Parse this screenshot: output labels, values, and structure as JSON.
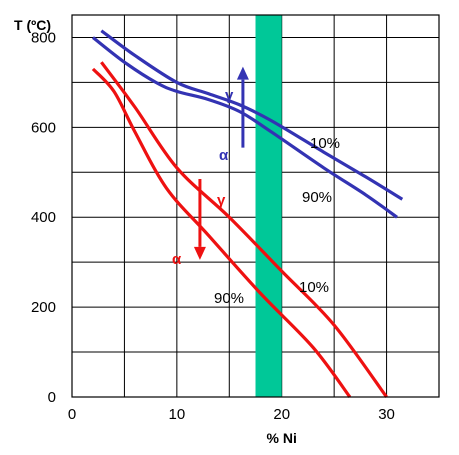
{
  "chart_data": {
    "type": "line",
    "ylabel": "T (ºC)",
    "xlabel": "% Ni",
    "xlim": [
      0,
      35
    ],
    "ylim": [
      0,
      850
    ],
    "xticks": [
      0,
      10,
      20,
      30
    ],
    "yticks": [
      0,
      200,
      400,
      600,
      800
    ],
    "grid": true,
    "series": [
      {
        "name": "10%",
        "color": "#3333b3",
        "points": [
          [
            2.8,
            815
          ],
          [
            6,
            760
          ],
          [
            10,
            700
          ],
          [
            13,
            675
          ],
          [
            16,
            650
          ],
          [
            19,
            615
          ],
          [
            24,
            545
          ],
          [
            28,
            490
          ],
          [
            31.5,
            440
          ]
        ]
      },
      {
        "name": "90%",
        "color": "#3333b3",
        "points": [
          [
            2,
            800
          ],
          [
            5,
            745
          ],
          [
            8,
            700
          ],
          [
            10,
            680
          ],
          [
            13,
            662
          ],
          [
            16,
            635
          ],
          [
            19,
            590
          ],
          [
            24,
            510
          ],
          [
            28,
            450
          ],
          [
            31,
            400
          ]
        ]
      },
      {
        "name": "10%",
        "color": "#ee1111",
        "points": [
          [
            2.8,
            745
          ],
          [
            6,
            645
          ],
          [
            10,
            510
          ],
          [
            15,
            400
          ],
          [
            20,
            280
          ],
          [
            25,
            160
          ],
          [
            30,
            0
          ]
        ]
      },
      {
        "name": "90%",
        "color": "#ee1111",
        "points": [
          [
            2,
            730
          ],
          [
            4,
            680
          ],
          [
            6,
            590
          ],
          [
            9,
            465
          ],
          [
            13,
            360
          ],
          [
            18,
            230
          ],
          [
            23,
            110
          ],
          [
            26.5,
            0
          ]
        ]
      }
    ],
    "band": {
      "x": [
        17.5,
        20
      ],
      "color": "#00c898"
    },
    "annotations": [
      {
        "text": "γ",
        "color": "#3333b3"
      },
      {
        "text": "α",
        "color": "#3333b3"
      },
      {
        "text": "γ",
        "color": "#ee1111"
      },
      {
        "text": "α",
        "color": "#ee1111"
      }
    ],
    "arrows": [
      {
        "color": "#3333b3",
        "direction": "up",
        "x": 16.3,
        "from": 555,
        "to": 735
      },
      {
        "color": "#ee1111",
        "direction": "down",
        "x": 12.2,
        "from": 485,
        "to": 305
      }
    ]
  }
}
